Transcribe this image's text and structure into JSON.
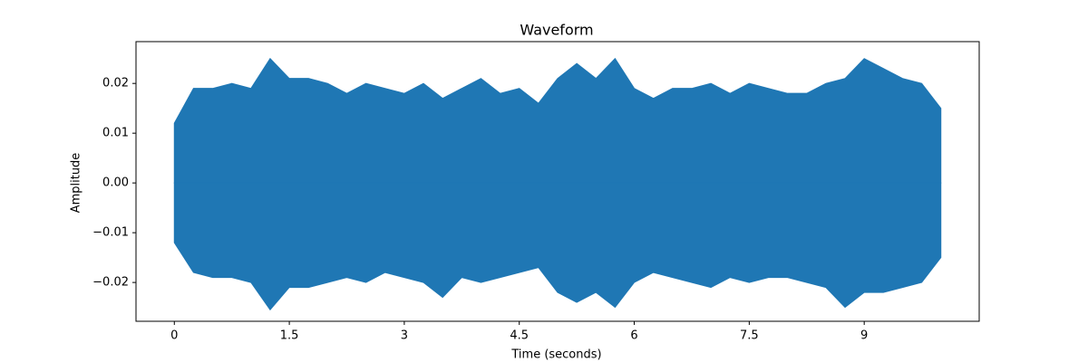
{
  "chart_data": {
    "type": "area",
    "title": "Waveform",
    "xlabel": "Time (seconds)",
    "ylabel": "Amplitude",
    "x": [
      0,
      0.25,
      0.5,
      0.75,
      1.0,
      1.25,
      1.5,
      1.75,
      2.0,
      2.25,
      2.5,
      2.75,
      3.0,
      3.25,
      3.5,
      3.75,
      4.0,
      4.25,
      4.5,
      4.75,
      5.0,
      5.25,
      5.5,
      5.75,
      6.0,
      6.25,
      6.5,
      6.75,
      7.0,
      7.25,
      7.5,
      7.75,
      8.0,
      8.25,
      8.5,
      8.75,
      9.0,
      9.25,
      9.5,
      9.75,
      10.0
    ],
    "series": [
      {
        "color": "#1f77b4",
        "values": [
          0.012,
          0.019,
          0.019,
          0.02,
          0.019,
          0.025,
          0.021,
          0.021,
          0.02,
          0.018,
          0.02,
          0.019,
          0.018,
          0.02,
          0.017,
          0.019,
          0.021,
          0.018,
          0.019,
          0.016,
          0.021,
          0.024,
          0.021,
          0.025,
          0.019,
          0.017,
          0.019,
          0.019,
          0.02,
          0.018,
          0.02,
          0.019,
          0.018,
          0.018,
          0.02,
          0.021,
          0.025,
          0.023,
          0.021,
          0.02,
          0.015
        ]
      },
      {
        "color": "#1f77b4",
        "values": [
          -0.012,
          -0.018,
          -0.019,
          -0.019,
          -0.02,
          -0.0255,
          -0.021,
          -0.021,
          -0.02,
          -0.019,
          -0.02,
          -0.018,
          -0.019,
          -0.02,
          -0.023,
          -0.019,
          -0.02,
          -0.019,
          -0.018,
          -0.017,
          -0.022,
          -0.024,
          -0.022,
          -0.025,
          -0.02,
          -0.018,
          -0.019,
          -0.02,
          -0.021,
          -0.019,
          -0.02,
          -0.019,
          -0.019,
          -0.02,
          -0.021,
          -0.025,
          -0.022,
          -0.022,
          -0.021,
          -0.02,
          -0.015
        ]
      }
    ],
    "xlim": [
      -0.5,
      10.5
    ],
    "ylim": [
      -0.0278,
      0.0284
    ],
    "xticks": [
      0,
      1.5,
      3,
      4.5,
      6,
      7.5,
      9
    ],
    "yticks": [
      {
        "value": -0.02,
        "label": "−0.02"
      },
      {
        "value": -0.01,
        "label": "−0.01"
      },
      {
        "value": 0,
        "label": "0.00"
      },
      0.01,
      0.02
    ],
    "grid": false
  }
}
